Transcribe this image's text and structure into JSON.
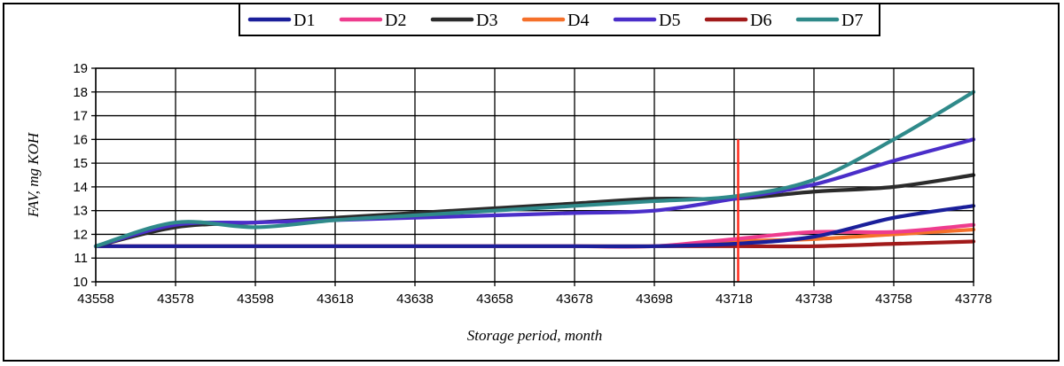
{
  "chart_data": {
    "type": "line",
    "title": "",
    "xlabel": "Storage period, month",
    "ylabel": "FAV, mg KOH",
    "xlim": [
      43558,
      43778
    ],
    "ylim": [
      10,
      19
    ],
    "x_ticks": [
      43558,
      43578,
      43598,
      43618,
      43638,
      43658,
      43678,
      43698,
      43718,
      43738,
      43758,
      43778
    ],
    "y_ticks": [
      10,
      11,
      12,
      13,
      14,
      15,
      16,
      17,
      18,
      19
    ],
    "grid": true,
    "legend_position": "top",
    "annotations": [
      {
        "kind": "vertical-line",
        "x": 43719,
        "y_range": [
          10,
          16
        ],
        "color": "#ff2a1a"
      }
    ],
    "series": [
      {
        "name": "D1",
        "color": "#1a1f9a",
        "points": [
          [
            43558,
            11.5
          ],
          [
            43578,
            11.5
          ],
          [
            43598,
            11.5
          ],
          [
            43618,
            11.5
          ],
          [
            43638,
            11.5
          ],
          [
            43658,
            11.5
          ],
          [
            43678,
            11.5
          ],
          [
            43698,
            11.5
          ],
          [
            43718,
            11.6
          ],
          [
            43738,
            11.9
          ],
          [
            43758,
            12.7
          ],
          [
            43778,
            13.2
          ]
        ]
      },
      {
        "name": "D2",
        "color": "#ee3c8e",
        "points": [
          [
            43558,
            11.5
          ],
          [
            43578,
            11.5
          ],
          [
            43598,
            11.5
          ],
          [
            43618,
            11.5
          ],
          [
            43638,
            11.5
          ],
          [
            43658,
            11.5
          ],
          [
            43678,
            11.5
          ],
          [
            43698,
            11.5
          ],
          [
            43718,
            11.8
          ],
          [
            43738,
            12.1
          ],
          [
            43758,
            12.1
          ],
          [
            43778,
            12.4
          ]
        ]
      },
      {
        "name": "D3",
        "color": "#2b2b2b",
        "points": [
          [
            43558,
            11.5
          ],
          [
            43578,
            12.3
          ],
          [
            43598,
            12.5
          ],
          [
            43618,
            12.7
          ],
          [
            43638,
            12.9
          ],
          [
            43658,
            13.1
          ],
          [
            43678,
            13.3
          ],
          [
            43698,
            13.5
          ],
          [
            43718,
            13.5
          ],
          [
            43738,
            13.8
          ],
          [
            43758,
            14.0
          ],
          [
            43778,
            14.5
          ]
        ]
      },
      {
        "name": "D4",
        "color": "#f5702a",
        "points": [
          [
            43558,
            11.5
          ],
          [
            43578,
            11.5
          ],
          [
            43598,
            11.5
          ],
          [
            43618,
            11.5
          ],
          [
            43638,
            11.5
          ],
          [
            43658,
            11.5
          ],
          [
            43678,
            11.5
          ],
          [
            43698,
            11.5
          ],
          [
            43718,
            11.7
          ],
          [
            43738,
            11.8
          ],
          [
            43758,
            12.0
          ],
          [
            43778,
            12.2
          ]
        ]
      },
      {
        "name": "D5",
        "color": "#4a2ec9",
        "points": [
          [
            43558,
            11.5
          ],
          [
            43578,
            12.4
          ],
          [
            43598,
            12.5
          ],
          [
            43618,
            12.6
          ],
          [
            43638,
            12.7
          ],
          [
            43658,
            12.8
          ],
          [
            43678,
            12.9
          ],
          [
            43698,
            13.0
          ],
          [
            43718,
            13.5
          ],
          [
            43738,
            14.1
          ],
          [
            43758,
            15.1
          ],
          [
            43778,
            16.0
          ]
        ]
      },
      {
        "name": "D6",
        "color": "#a11a1a",
        "points": [
          [
            43558,
            11.5
          ],
          [
            43578,
            11.5
          ],
          [
            43598,
            11.5
          ],
          [
            43618,
            11.5
          ],
          [
            43638,
            11.5
          ],
          [
            43658,
            11.5
          ],
          [
            43678,
            11.5
          ],
          [
            43698,
            11.5
          ],
          [
            43718,
            11.5
          ],
          [
            43738,
            11.5
          ],
          [
            43758,
            11.6
          ],
          [
            43778,
            11.7
          ]
        ]
      },
      {
        "name": "D7",
        "color": "#2f8a8a",
        "points": [
          [
            43558,
            11.5
          ],
          [
            43578,
            12.5
          ],
          [
            43598,
            12.3
          ],
          [
            43618,
            12.6
          ],
          [
            43638,
            12.8
          ],
          [
            43658,
            13.0
          ],
          [
            43678,
            13.2
          ],
          [
            43698,
            13.4
          ],
          [
            43718,
            13.6
          ],
          [
            43738,
            14.3
          ],
          [
            43758,
            16.0
          ],
          [
            43778,
            18.0
          ]
        ]
      }
    ]
  }
}
